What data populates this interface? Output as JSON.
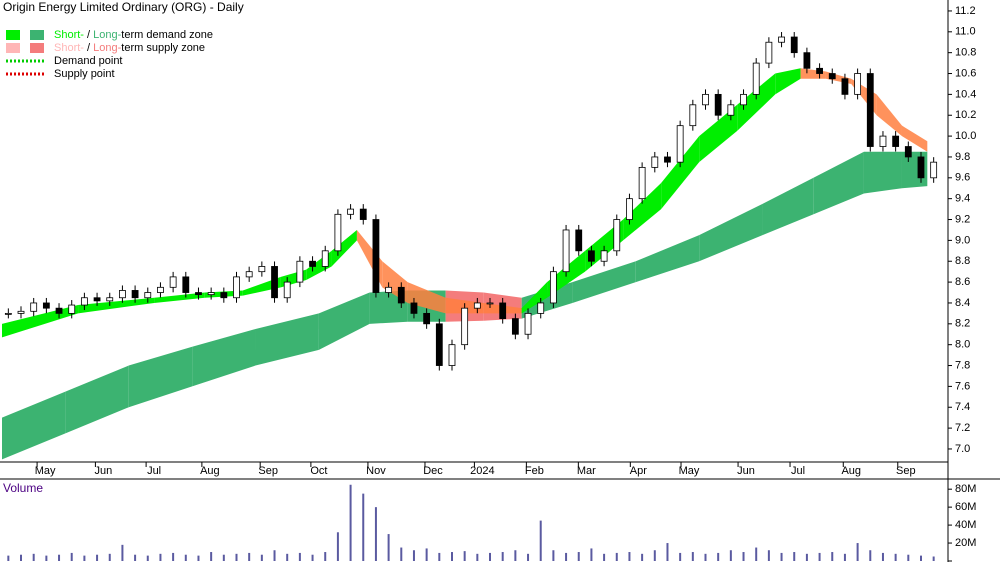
{
  "chart_data": {
    "type": "candlestick",
    "title": "Origin Energy Limited Ordinary (ORG) - Daily",
    "legend": [
      {
        "short": "Short-",
        "sep": " / ",
        "long": "Long-",
        "rest": "term demand zone",
        "colors": [
          "#00ee00",
          "#3cb371"
        ]
      },
      {
        "short": "Short-",
        "sep": " / ",
        "long": "Long-",
        "rest": "term supply zone",
        "colors": [
          "#ffb6b6",
          "#f47c7c"
        ]
      },
      {
        "label": "Demand point",
        "color": "#00cc00"
      },
      {
        "label": "Supply point",
        "color": "#dd0000"
      }
    ],
    "xlim": [
      0,
      74
    ],
    "xticks": [
      {
        "value": 3.4,
        "label": "May"
      },
      {
        "value": 8,
        "label": "Jun"
      },
      {
        "value": 12,
        "label": "Jul"
      },
      {
        "value": 16.4,
        "label": "Aug"
      },
      {
        "value": 21,
        "label": "Sep"
      },
      {
        "value": 25,
        "label": "Oct"
      },
      {
        "value": 29.5,
        "label": "Nov"
      },
      {
        "value": 34,
        "label": "Dec"
      },
      {
        "value": 37.9,
        "label": "2024"
      },
      {
        "value": 42,
        "label": "Feb"
      },
      {
        "value": 46.1,
        "label": "Mar"
      },
      {
        "value": 50.2,
        "label": "Apr"
      },
      {
        "value": 54.2,
        "label": "May"
      },
      {
        "value": 58.7,
        "label": "Jun"
      },
      {
        "value": 62.8,
        "label": "Jul"
      },
      {
        "value": 67,
        "label": "Aug"
      },
      {
        "value": 71.3,
        "label": "Sep"
      }
    ],
    "ylim": [
      6.875,
      11.305
    ],
    "yticks": [
      {
        "value": 7,
        "label": "7.0"
      },
      7.2,
      7.4,
      7.6,
      7.8,
      {
        "value": 8,
        "label": "8.0"
      },
      8.2,
      8.4,
      8.6,
      8.8,
      {
        "value": 9,
        "label": "9.0"
      },
      9.2,
      9.4,
      9.6,
      9.8,
      {
        "value": 10,
        "label": "10.0"
      },
      10.2,
      10.4,
      10.6,
      10.8,
      {
        "value": 11,
        "label": "11.0"
      },
      11.2
    ],
    "price": {
      "name": "Close",
      "up_color": "#ffffff",
      "down_color": "#000000",
      "values": [
        8.3,
        8.32,
        8.4,
        8.35,
        8.3,
        8.38,
        8.45,
        8.42,
        8.45,
        8.52,
        8.45,
        8.5,
        8.55,
        8.65,
        8.5,
        8.48,
        8.5,
        8.45,
        8.65,
        8.7,
        8.75,
        8.45,
        8.6,
        8.8,
        8.75,
        8.9,
        9.25,
        9.3,
        9.2,
        8.5,
        8.55,
        8.4,
        8.3,
        8.2,
        7.8,
        8.0,
        8.35,
        8.4,
        8.4,
        8.25,
        8.1,
        8.3,
        8.4,
        8.7,
        9.1,
        8.9,
        8.8,
        8.9,
        9.2,
        9.4,
        9.7,
        9.8,
        9.75,
        10.1,
        10.3,
        10.4,
        10.2,
        10.3,
        10.4,
        10.7,
        10.9,
        10.95,
        10.8,
        10.65,
        10.6,
        10.55,
        10.4,
        10.6,
        9.9,
        10.0,
        9.9,
        9.8,
        9.6,
        9.75
      ]
    },
    "zones": [
      {
        "name": "Long-term zone",
        "demand_color": "#3cb371",
        "supply_color": "#f47c7c",
        "x": [
          0,
          5,
          10,
          15,
          20,
          25,
          29,
          32,
          35,
          38,
          41,
          45,
          50,
          55,
          60,
          64,
          68,
          71,
          73
        ],
        "lower": [
          6.9,
          7.15,
          7.4,
          7.6,
          7.8,
          7.95,
          8.2,
          8.22,
          8.22,
          8.23,
          8.25,
          8.4,
          8.6,
          8.8,
          9.05,
          9.25,
          9.45,
          9.5,
          9.52
        ],
        "upper": [
          7.3,
          7.55,
          7.8,
          7.98,
          8.15,
          8.3,
          8.5,
          8.52,
          8.52,
          8.5,
          8.45,
          8.6,
          8.8,
          9.05,
          9.35,
          9.6,
          9.85,
          9.85,
          9.85
        ]
      },
      {
        "name": "Short-term zone",
        "demand_color": "#00ee00",
        "supply_color": "#ff7f3f",
        "x": [
          0,
          6,
          12,
          16,
          19,
          22,
          24,
          26,
          28,
          30,
          32,
          35,
          38,
          41,
          43,
          46,
          49,
          52,
          55,
          58,
          61,
          63,
          65,
          67,
          69,
          71,
          73
        ],
        "lower": [
          8.07,
          8.3,
          8.4,
          8.45,
          8.47,
          8.55,
          8.62,
          8.75,
          9.0,
          8.55,
          8.4,
          8.3,
          8.3,
          8.3,
          8.45,
          8.7,
          9.0,
          9.3,
          9.75,
          10.05,
          10.4,
          10.55,
          10.55,
          10.5,
          10.2,
          10.0,
          9.85
        ],
        "upper": [
          8.2,
          8.38,
          8.45,
          8.5,
          8.52,
          8.65,
          8.72,
          8.9,
          9.1,
          8.8,
          8.6,
          8.45,
          8.4,
          8.35,
          8.6,
          8.9,
          9.2,
          9.55,
          10.0,
          10.3,
          10.6,
          10.65,
          10.62,
          10.55,
          10.4,
          10.1,
          9.95
        ]
      }
    ],
    "volume": {
      "title": "Volume",
      "color": "#5a5aa0",
      "ylim": [
        0,
        88000000
      ],
      "yticks": [
        {
          "value": 0,
          "label": "0"
        },
        {
          "value": 20000000,
          "label": "20M"
        },
        {
          "value": 40000000,
          "label": "40M"
        },
        {
          "value": 60000000,
          "label": "60M"
        },
        {
          "value": 80000000,
          "label": "80M"
        }
      ],
      "values": [
        6000000,
        7000000,
        8000000,
        6000000,
        7000000,
        9000000,
        6000000,
        7000000,
        8000000,
        18000000,
        7000000,
        6000000,
        8000000,
        9000000,
        7000000,
        6000000,
        10000000,
        7000000,
        8000000,
        9000000,
        7000000,
        12000000,
        8000000,
        9000000,
        7000000,
        10000000,
        32000000,
        85000000,
        75000000,
        60000000,
        30000000,
        15000000,
        12000000,
        14000000,
        9000000,
        10000000,
        11000000,
        8000000,
        9000000,
        10000000,
        12000000,
        8000000,
        45000000,
        12000000,
        9000000,
        10000000,
        14000000,
        8000000,
        9000000,
        10000000,
        8000000,
        12000000,
        20000000,
        9000000,
        10000000,
        8000000,
        9000000,
        12000000,
        10000000,
        15000000,
        12000000,
        9000000,
        10000000,
        8000000,
        9000000,
        10000000,
        8000000,
        20000000,
        12000000,
        9000000,
        8000000,
        7000000,
        6000000,
        5000000
      ]
    }
  }
}
